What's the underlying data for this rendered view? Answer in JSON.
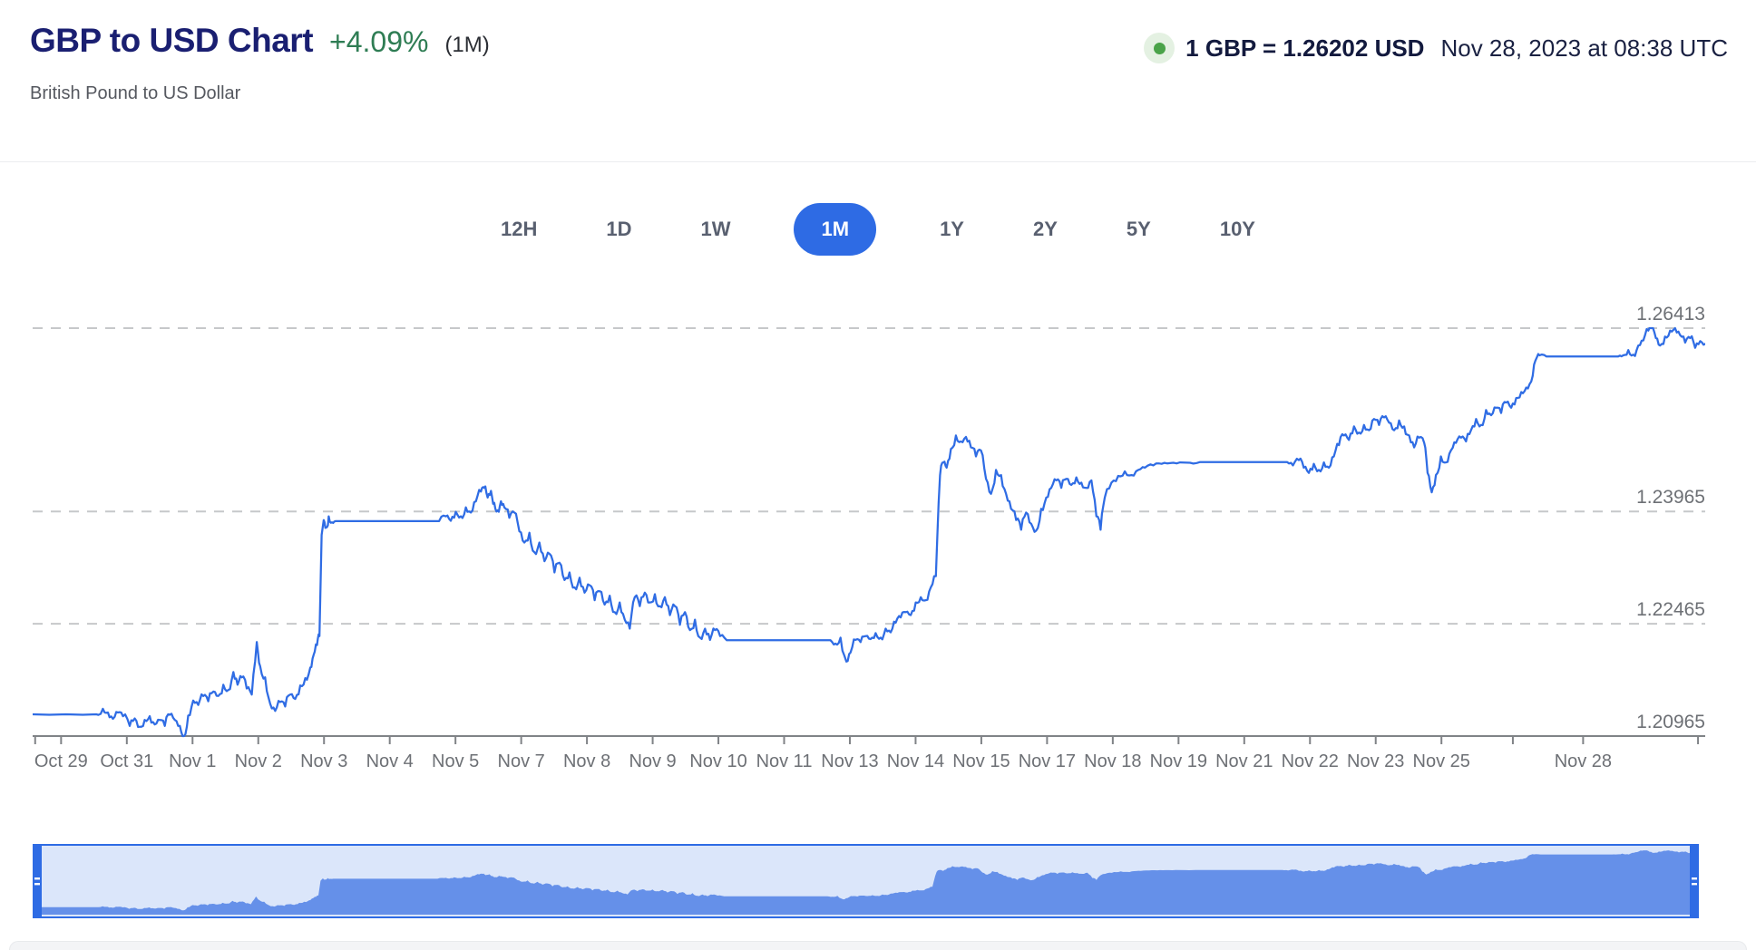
{
  "header": {
    "title": "GBP to USD Chart",
    "change_percent": "+4.09%",
    "change_period": "(1M)",
    "subtitle": "British Pound to US Dollar",
    "live_rate": "1 GBP = 1.26202 USD",
    "timestamp": "Nov 28, 2023 at 08:38 UTC",
    "status_dot_color": "#4aa349"
  },
  "timeframes": {
    "options": [
      "12H",
      "1D",
      "1W",
      "1M",
      "1Y",
      "2Y",
      "5Y",
      "10Y"
    ],
    "selected": "1M",
    "active_color": "#2e6be4"
  },
  "chart_data": {
    "type": "line",
    "title": "GBP to USD exchange rate, 1 month",
    "pair": "GBP/USD",
    "line_color": "#2f6ce4",
    "grid_color": "#c6c8ca",
    "axis_color": "#808387",
    "label_color": "#6d7075",
    "ylim": [
      1.20965,
      1.26413
    ],
    "y_labels": [
      {
        "text": "1.26413",
        "v": 1.26413
      },
      {
        "text": "1.23965",
        "v": 1.23965
      },
      {
        "text": "1.22465",
        "v": 1.22465
      },
      {
        "text": "1.20965",
        "v": 1.20965
      }
    ],
    "x_labels": [
      {
        "text": "Oct 29",
        "f": 0.017
      },
      {
        "text": "Oct 31",
        "f": 0.0563
      },
      {
        "text": "Nov 1",
        "f": 0.0956
      },
      {
        "text": "Nov 2",
        "f": 0.1349
      },
      {
        "text": "Nov 3",
        "f": 0.1742
      },
      {
        "text": "Nov 4",
        "f": 0.2135
      },
      {
        "text": "Nov 5",
        "f": 0.2528
      },
      {
        "text": "Nov 7",
        "f": 0.2921
      },
      {
        "text": "Nov 8",
        "f": 0.3314
      },
      {
        "text": "Nov 9",
        "f": 0.3707
      },
      {
        "text": "Nov 10",
        "f": 0.41
      },
      {
        "text": "Nov 11",
        "f": 0.4493
      },
      {
        "text": "Nov 13",
        "f": 0.4886
      },
      {
        "text": "Nov 14",
        "f": 0.5279
      },
      {
        "text": "Nov 15",
        "f": 0.5672
      },
      {
        "text": "Nov 17",
        "f": 0.6065
      },
      {
        "text": "Nov 18",
        "f": 0.6458
      },
      {
        "text": "Nov 19",
        "f": 0.6851
      },
      {
        "text": "Nov 21",
        "f": 0.7244
      },
      {
        "text": "Nov 22",
        "f": 0.7637
      },
      {
        "text": "Nov 23",
        "f": 0.803
      },
      {
        "text": "Nov 25",
        "f": 0.8423
      },
      {
        "text": "Nov 28",
        "f": 0.927
      }
    ],
    "extra_ticks": [
      0.885,
      0.9957
    ],
    "end_value": 1.26202,
    "series": [
      [
        0.0,
        1.21255
      ],
      [
        0.01,
        1.2125
      ],
      [
        0.02,
        1.21255
      ],
      [
        0.03,
        1.2125
      ],
      [
        0.038,
        1.21255
      ],
      [
        0.042,
        1.2133
      ],
      [
        0.045,
        1.2128
      ],
      [
        0.048,
        1.21195
      ],
      [
        0.051,
        1.2128
      ],
      [
        0.054,
        1.2123
      ],
      [
        0.058,
        1.211
      ],
      [
        0.061,
        1.212
      ],
      [
        0.064,
        1.2109
      ],
      [
        0.067,
        1.2118
      ],
      [
        0.07,
        1.2123
      ],
      [
        0.073,
        1.2112
      ],
      [
        0.076,
        1.2118
      ],
      [
        0.079,
        1.211
      ],
      [
        0.082,
        1.2125
      ],
      [
        0.085,
        1.2118
      ],
      [
        0.088,
        1.211
      ],
      [
        0.0905,
        1.20965
      ],
      [
        0.093,
        1.2124
      ],
      [
        0.096,
        1.2144
      ],
      [
        0.099,
        1.2138
      ],
      [
        0.102,
        1.215
      ],
      [
        0.105,
        1.2143
      ],
      [
        0.108,
        1.2156
      ],
      [
        0.111,
        1.215
      ],
      [
        0.114,
        1.2165
      ],
      [
        0.117,
        1.2158
      ],
      [
        0.12,
        1.2182
      ],
      [
        0.1225,
        1.2165
      ],
      [
        0.125,
        1.2175
      ],
      [
        0.128,
        1.216
      ],
      [
        0.131,
        1.2152
      ],
      [
        0.134,
        1.2222
      ],
      [
        0.136,
        1.219
      ],
      [
        0.139,
        1.2175
      ],
      [
        0.142,
        1.214
      ],
      [
        0.145,
        1.213
      ],
      [
        0.148,
        1.2142
      ],
      [
        0.151,
        1.2136
      ],
      [
        0.154,
        1.2152
      ],
      [
        0.157,
        1.2146
      ],
      [
        0.16,
        1.2164
      ],
      [
        0.163,
        1.2174
      ],
      [
        0.166,
        1.2188
      ],
      [
        0.168,
        1.2205
      ],
      [
        0.17,
        1.2218
      ],
      [
        0.1715,
        1.223
      ],
      [
        0.1728,
        1.2365
      ],
      [
        0.174,
        1.2385
      ],
      [
        0.1755,
        1.2375
      ],
      [
        0.177,
        1.239
      ],
      [
        0.179,
        1.2382
      ],
      [
        0.181,
        1.23835
      ],
      [
        0.185,
        1.23835
      ],
      [
        0.243,
        1.23835
      ],
      [
        0.247,
        1.239
      ],
      [
        0.25,
        1.2384
      ],
      [
        0.253,
        1.2396
      ],
      [
        0.256,
        1.239
      ],
      [
        0.259,
        1.2402
      ],
      [
        0.262,
        1.2395
      ],
      [
        0.265,
        1.241
      ],
      [
        0.268,
        1.2423
      ],
      [
        0.27,
        1.2428
      ],
      [
        0.272,
        1.2415
      ],
      [
        0.274,
        1.2424
      ],
      [
        0.276,
        1.2408
      ],
      [
        0.278,
        1.2398
      ],
      [
        0.28,
        1.241
      ],
      [
        0.282,
        1.2402
      ],
      [
        0.285,
        1.2388
      ],
      [
        0.288,
        1.2395
      ],
      [
        0.291,
        1.237
      ],
      [
        0.294,
        1.2355
      ],
      [
        0.297,
        1.2368
      ],
      [
        0.3,
        1.2342
      ],
      [
        0.303,
        1.2355
      ],
      [
        0.306,
        1.233
      ],
      [
        0.309,
        1.234
      ],
      [
        0.312,
        1.2315
      ],
      [
        0.315,
        1.2328
      ],
      [
        0.318,
        1.2305
      ],
      [
        0.321,
        1.2315
      ],
      [
        0.324,
        1.2295
      ],
      [
        0.327,
        1.2308
      ],
      [
        0.33,
        1.2288
      ],
      [
        0.333,
        1.2298
      ],
      [
        0.336,
        1.2278
      ],
      [
        0.339,
        1.229
      ],
      [
        0.342,
        1.2272
      ],
      [
        0.345,
        1.2284
      ],
      [
        0.348,
        1.2262
      ],
      [
        0.351,
        1.2275
      ],
      [
        0.354,
        1.2252
      ],
      [
        0.357,
        1.224
      ],
      [
        0.36,
        1.2282
      ],
      [
        0.363,
        1.227
      ],
      [
        0.366,
        1.2288
      ],
      [
        0.369,
        1.2275
      ],
      [
        0.372,
        1.2286
      ],
      [
        0.375,
        1.227
      ],
      [
        0.378,
        1.2282
      ],
      [
        0.381,
        1.2258
      ],
      [
        0.384,
        1.227
      ],
      [
        0.387,
        1.2245
      ],
      [
        0.39,
        1.2262
      ],
      [
        0.393,
        1.2238
      ],
      [
        0.396,
        1.2252
      ],
      [
        0.399,
        1.2228
      ],
      [
        0.402,
        1.224
      ],
      [
        0.405,
        1.2225
      ],
      [
        0.408,
        1.2238
      ],
      [
        0.411,
        1.223
      ],
      [
        0.415,
        1.22245
      ],
      [
        0.477,
        1.22245
      ],
      [
        0.48,
        1.222
      ],
      [
        0.483,
        1.2228
      ],
      [
        0.4865,
        1.2196
      ],
      [
        0.489,
        1.2208
      ],
      [
        0.492,
        1.2225
      ],
      [
        0.495,
        1.2222
      ],
      [
        0.498,
        1.223
      ],
      [
        0.501,
        1.2226
      ],
      [
        0.504,
        1.2234
      ],
      [
        0.507,
        1.2228
      ],
      [
        0.51,
        1.224
      ],
      [
        0.513,
        1.2235
      ],
      [
        0.516,
        1.2248
      ],
      [
        0.519,
        1.2255
      ],
      [
        0.522,
        1.2262
      ],
      [
        0.525,
        1.2258
      ],
      [
        0.528,
        1.2275
      ],
      [
        0.531,
        1.2282
      ],
      [
        0.534,
        1.2278
      ],
      [
        0.537,
        1.2295
      ],
      [
        0.54,
        1.231
      ],
      [
        0.5425,
        1.2445
      ],
      [
        0.5445,
        1.2462
      ],
      [
        0.5465,
        1.2455
      ],
      [
        0.549,
        1.248
      ],
      [
        0.552,
        1.2498
      ],
      [
        0.555,
        1.249
      ],
      [
        0.558,
        1.2496
      ],
      [
        0.561,
        1.2482
      ],
      [
        0.564,
        1.247
      ],
      [
        0.567,
        1.2478
      ],
      [
        0.57,
        1.244
      ],
      [
        0.573,
        1.242
      ],
      [
        0.576,
        1.2452
      ],
      [
        0.579,
        1.2445
      ],
      [
        0.582,
        1.242
      ],
      [
        0.585,
        1.24
      ],
      [
        0.588,
        1.2385
      ],
      [
        0.591,
        1.2372
      ],
      [
        0.594,
        1.2395
      ],
      [
        0.597,
        1.238
      ],
      [
        0.6,
        1.2371
      ],
      [
        0.603,
        1.24
      ],
      [
        0.606,
        1.2415
      ],
      [
        0.609,
        1.2428
      ],
      [
        0.612,
        1.2438
      ],
      [
        0.615,
        1.2428
      ],
      [
        0.618,
        1.244
      ],
      [
        0.621,
        1.2432
      ],
      [
        0.624,
        1.2442
      ],
      [
        0.627,
        1.2435
      ],
      [
        0.63,
        1.2428
      ],
      [
        0.633,
        1.2438
      ],
      [
        0.636,
        1.239
      ],
      [
        0.6385,
        1.2372
      ],
      [
        0.641,
        1.2415
      ],
      [
        0.645,
        1.2435
      ],
      [
        0.649,
        1.2444
      ],
      [
        0.653,
        1.245
      ],
      [
        0.657,
        1.2445
      ],
      [
        0.661,
        1.2452
      ],
      [
        0.665,
        1.2455
      ],
      [
        0.67,
        1.2458
      ],
      [
        0.675,
        1.246
      ],
      [
        0.68,
        1.2461
      ],
      [
        0.686,
        1.2462
      ],
      [
        0.692,
        1.24615
      ],
      [
        0.698,
        1.24625
      ],
      [
        0.75,
        1.24625
      ],
      [
        0.7535,
        1.2458
      ],
      [
        0.757,
        1.2465
      ],
      [
        0.76,
        1.2455
      ],
      [
        0.763,
        1.2448
      ],
      [
        0.766,
        1.246
      ],
      [
        0.769,
        1.2452
      ],
      [
        0.772,
        1.2462
      ],
      [
        0.775,
        1.2455
      ],
      [
        0.778,
        1.247
      ],
      [
        0.781,
        1.2485
      ],
      [
        0.784,
        1.2498
      ],
      [
        0.787,
        1.2492
      ],
      [
        0.79,
        1.251
      ],
      [
        0.793,
        1.2502
      ],
      [
        0.796,
        1.2512
      ],
      [
        0.799,
        1.2505
      ],
      [
        0.802,
        1.252
      ],
      [
        0.805,
        1.2512
      ],
      [
        0.808,
        1.2522
      ],
      [
        0.811,
        1.2515
      ],
      [
        0.814,
        1.2505
      ],
      [
        0.817,
        1.2518
      ],
      [
        0.82,
        1.251
      ],
      [
        0.823,
        1.2498
      ],
      [
        0.826,
        1.2482
      ],
      [
        0.829,
        1.2495
      ],
      [
        0.832,
        1.2488
      ],
      [
        0.834,
        1.2448
      ],
      [
        0.8365,
        1.2422
      ],
      [
        0.839,
        1.2445
      ],
      [
        0.842,
        1.247
      ],
      [
        0.845,
        1.2462
      ],
      [
        0.848,
        1.2478
      ],
      [
        0.851,
        1.2488
      ],
      [
        0.854,
        1.2495
      ],
      [
        0.857,
        1.249
      ],
      [
        0.86,
        1.2505
      ],
      [
        0.863,
        1.252
      ],
      [
        0.866,
        1.2512
      ],
      [
        0.869,
        1.2532
      ],
      [
        0.872,
        1.2525
      ],
      [
        0.875,
        1.2535
      ],
      [
        0.878,
        1.2528
      ],
      [
        0.881,
        1.2542
      ],
      [
        0.884,
        1.2535
      ],
      [
        0.887,
        1.2548
      ],
      [
        0.89,
        1.2556
      ],
      [
        0.893,
        1.2562
      ],
      [
        0.896,
        1.257
      ],
      [
        0.8985,
        1.2598
      ],
      [
        0.901,
        1.2605
      ],
      [
        0.905,
        1.26035
      ],
      [
        0.948,
        1.26035
      ],
      [
        0.951,
        1.2605
      ],
      [
        0.954,
        1.2612
      ],
      [
        0.957,
        1.2606
      ],
      [
        0.96,
        1.2618
      ],
      [
        0.963,
        1.2625
      ],
      [
        0.966,
        1.2638
      ],
      [
        0.968,
        1.26413
      ],
      [
        0.9705,
        1.2628
      ],
      [
        0.973,
        1.2618
      ],
      [
        0.976,
        1.263
      ],
      [
        0.979,
        1.2638
      ],
      [
        0.982,
        1.26413
      ],
      [
        0.985,
        1.2632
      ],
      [
        0.988,
        1.2622
      ],
      [
        0.991,
        1.2628
      ],
      [
        0.994,
        1.2615
      ],
      [
        0.997,
        1.2624
      ],
      [
        1.0,
        1.26202
      ]
    ]
  },
  "brush": {
    "background": "#dbe6fa",
    "fill": "#6590e9",
    "border_color": "#2e6be4",
    "handle_color": "#2e6be4",
    "handle_icon": "grip-lines"
  }
}
